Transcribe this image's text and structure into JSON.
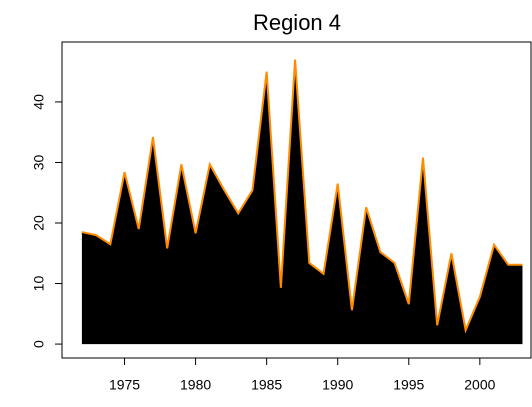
{
  "chart_data": {
    "type": "area",
    "title": "Region 4",
    "x": [
      1972,
      1973,
      1974,
      1975,
      1976,
      1977,
      1978,
      1979,
      1980,
      1981,
      1982,
      1983,
      1984,
      1985,
      1986,
      1987,
      1988,
      1989,
      1990,
      1991,
      1992,
      1993,
      1994,
      1995,
      1996,
      1997,
      1998,
      1999,
      2000,
      2001,
      2002,
      2003
    ],
    "series": [
      {
        "color": "#ff8c00",
        "fill": "#000000",
        "values": [
          18.5,
          18,
          16.5,
          28.4,
          19,
          34.2,
          15.8,
          29.7,
          18.3,
          29.7,
          25.5,
          21.6,
          25.4,
          45,
          9.3,
          47,
          13.4,
          11.6,
          26.5,
          5.6,
          22.6,
          15.2,
          13.4,
          6.6,
          30.8,
          3.1,
          15,
          2.3,
          7.8,
          16.4,
          13.1,
          13.1
        ]
      }
    ],
    "xlim": [
      1970.6,
      2003.6
    ],
    "xticks": [
      1975,
      1980,
      1985,
      1990,
      1995,
      2000
    ],
    "ylim": [
      -2.3,
      49.9
    ],
    "yticks": [
      0,
      10,
      20,
      30,
      40
    ]
  }
}
